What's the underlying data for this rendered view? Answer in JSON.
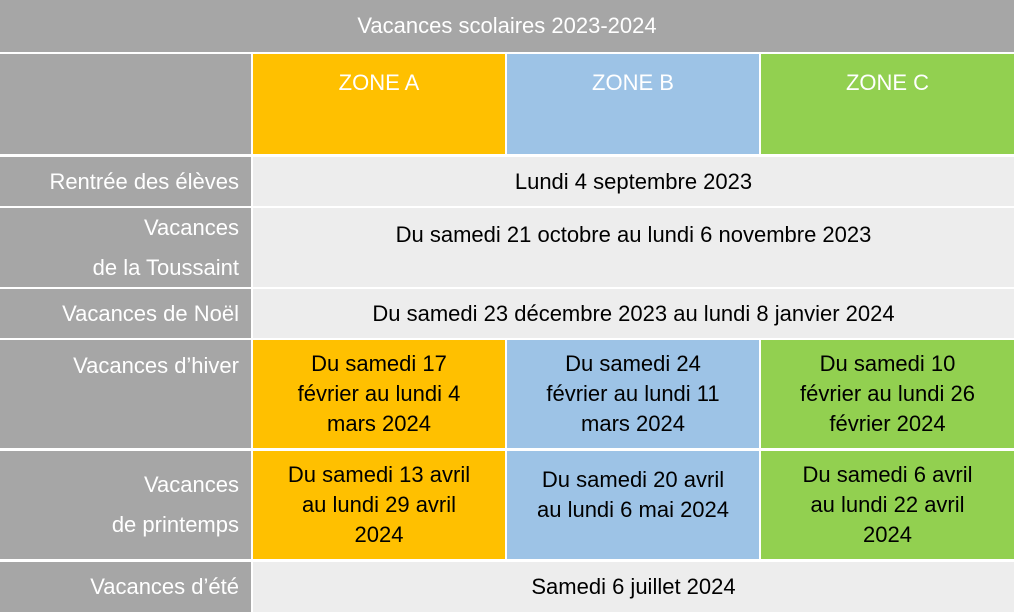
{
  "title": "Vacances scolaires 2023-2024",
  "zones": [
    "ZONE A",
    "ZONE B",
    "ZONE C"
  ],
  "colors": {
    "header_gray": "#a6a6a6",
    "zone_a": "#ffc000",
    "zone_b": "#9dc3e6",
    "zone_c": "#92d050",
    "span_bg": "#ededed"
  },
  "rows": {
    "rentree": {
      "label": "Rentrée des élèves",
      "value": "Lundi 4 septembre 2023"
    },
    "toussaint": {
      "label_line1": "Vacances",
      "label_line2": "de la Toussaint",
      "value": "Du samedi 21 octobre au lundi 6 novembre 2023"
    },
    "noel": {
      "label": "Vacances de Noël",
      "value": "Du samedi 23 décembre 2023 au lundi 8 janvier 2024"
    },
    "hiver": {
      "label": "Vacances d’hiver",
      "zone_a": [
        "Du samedi 17",
        "février au lundi 4",
        "mars 2024"
      ],
      "zone_b": [
        "Du samedi 24",
        "février au lundi 11",
        "mars 2024"
      ],
      "zone_c": [
        "Du samedi 10",
        "février au lundi 26",
        "février 2024"
      ]
    },
    "printemps": {
      "label_line1": "Vacances",
      "label_line2": "de printemps",
      "zone_a": [
        "Du samedi 13 avril",
        "au lundi 29 avril",
        "2024"
      ],
      "zone_b": [
        "Du samedi 20 avril",
        "au lundi 6 mai 2024"
      ],
      "zone_c": [
        "Du samedi 6 avril",
        "au lundi 22 avril",
        "2024"
      ]
    },
    "ete": {
      "label": "Vacances d’été",
      "value": "Samedi 6 juillet 2024"
    }
  }
}
